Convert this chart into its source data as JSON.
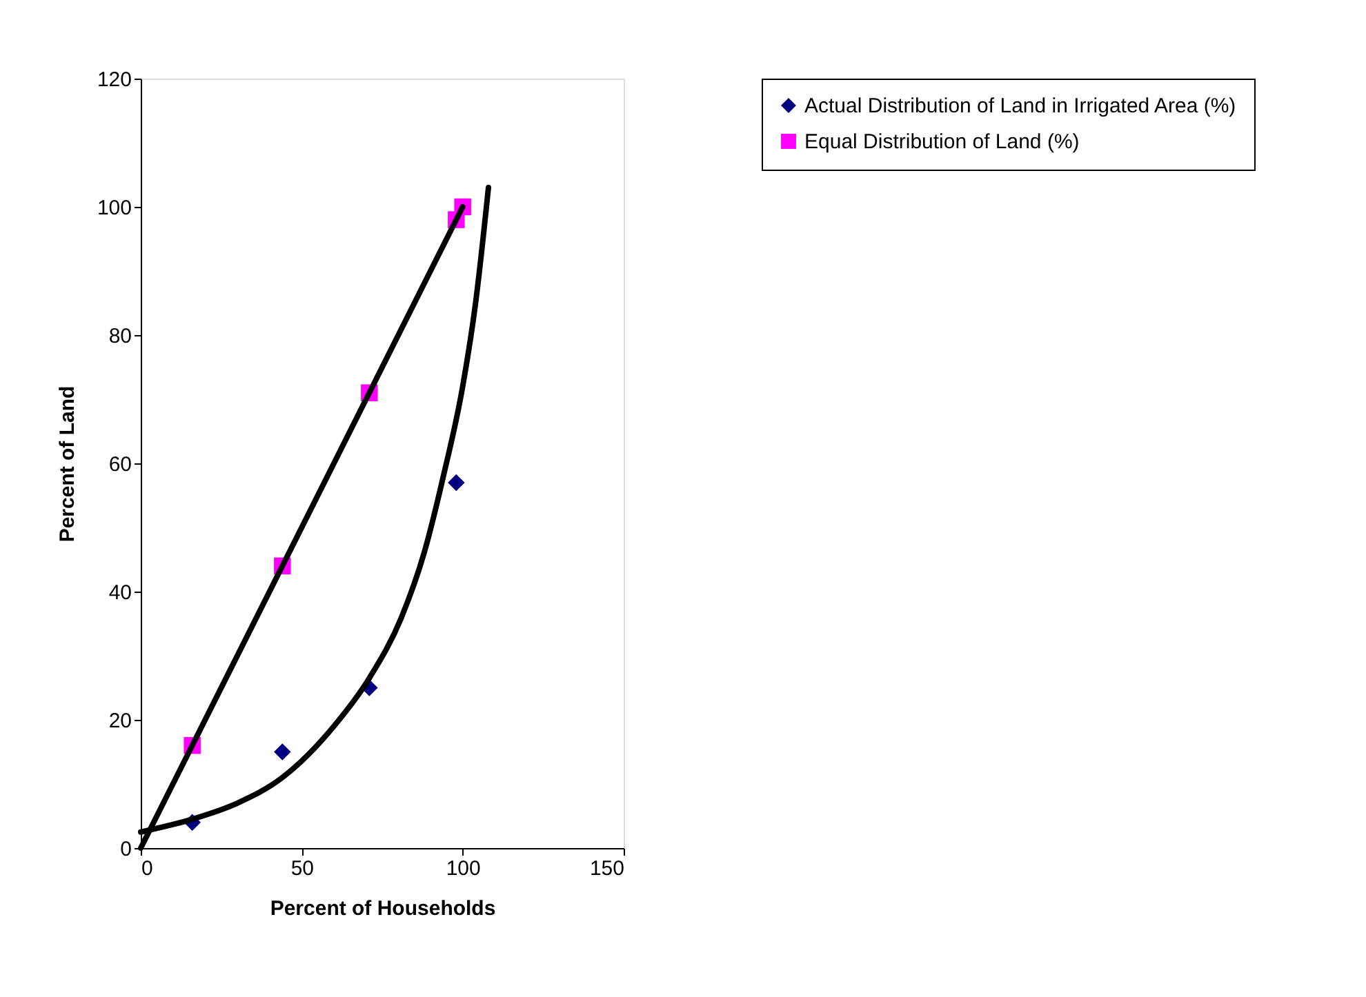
{
  "chart_data": {
    "type": "scatter",
    "xlabel": "Percent of Households",
    "ylabel": "Percent of Land",
    "xlim": [
      0,
      150
    ],
    "xticks": [
      0,
      50,
      100,
      150
    ],
    "ylim": [
      0,
      120
    ],
    "yticks": [
      0,
      20,
      40,
      60,
      80,
      100,
      120
    ],
    "grid": false,
    "legend": "right",
    "series": [
      {
        "name": "Actual Distribution of Land in Irrigated Area (%)",
        "color": "#000080",
        "marker": "diamond",
        "x": [
          16,
          44,
          71,
          98
        ],
        "values": [
          4,
          15,
          25,
          57
        ]
      },
      {
        "name": "Equal Distribution of Land (%)",
        "color": "#ff00ff",
        "marker": "square",
        "x": [
          16,
          44,
          71,
          98,
          100
        ],
        "values": [
          16,
          44,
          71,
          98,
          100
        ]
      },
      {
        "color": "#000000",
        "type": "line",
        "marker": "none",
        "line_style": "solid",
        "x": [
          0,
          100
        ],
        "values": [
          0,
          100
        ]
      },
      {
        "color": "#000000",
        "type": "line",
        "marker": "none",
        "line_style": "solid",
        "x": [
          0,
          16,
          30,
          44,
          60,
          71,
          81,
          88,
          94,
          100,
          104,
          108
        ],
        "values": [
          2.5,
          4.5,
          7,
          11,
          19,
          26.5,
          36,
          46,
          58,
          72,
          85,
          103
        ]
      }
    ]
  }
}
